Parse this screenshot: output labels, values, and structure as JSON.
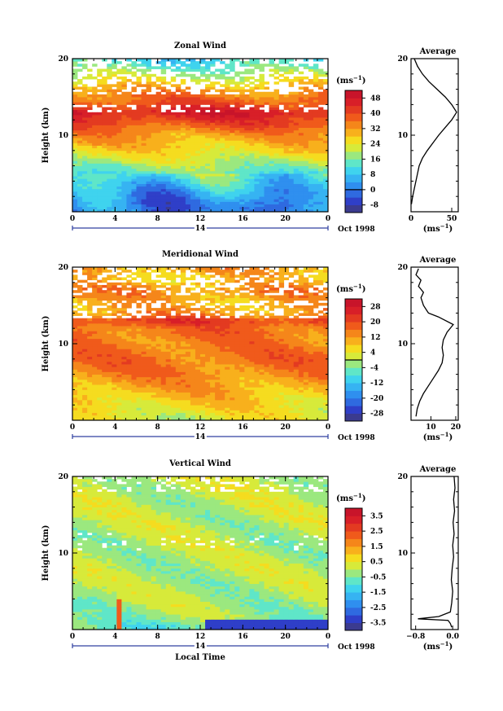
{
  "chart_data": [
    {
      "type": "heatmap",
      "title": "Zonal Wind",
      "ylabel": "Height (km)",
      "ylim": [
        0,
        20
      ],
      "y_ticks": [
        "20",
        "10"
      ],
      "x_ticks": [
        "0",
        "4",
        "8",
        "12",
        "16",
        "20",
        "0"
      ],
      "day_label": "14",
      "date_label": "Oct 1998",
      "colorbar": {
        "unit_prefix": "(ms",
        "unit_exp": "−1",
        "unit_suffix": ")",
        "ticks": [
          "48",
          "40",
          "32",
          "24",
          "16",
          "8",
          "0",
          "-8"
        ],
        "range": [
          -12,
          52
        ],
        "zero_line": 0,
        "colors": [
          "#3b3b8f",
          "#2f3fc8",
          "#2f6ae0",
          "#2f8fef",
          "#36b3f2",
          "#3fd3ee",
          "#5fe6c8",
          "#9be87f",
          "#d7ea3a",
          "#f5dc1f",
          "#f8b01c",
          "#f5861a",
          "#f05a1b",
          "#e33a21",
          "#d81f28",
          "#c8142a"
        ]
      },
      "profile": {
        "title": "Average",
        "x_ticks": [
          "0",
          "50"
        ],
        "x_range": [
          0,
          58
        ],
        "y_ticks": [
          "20",
          "10"
        ],
        "xlabel_prefix": "(ms",
        "xlabel_exp": "−1",
        "xlabel_suffix": ")",
        "points": [
          [
            0.5,
            1.0
          ],
          [
            2,
            2.0
          ],
          [
            4,
            3.0
          ],
          [
            6,
            4.0
          ],
          [
            8,
            5.0
          ],
          [
            10,
            6.0
          ],
          [
            14,
            7.0
          ],
          [
            20,
            8.0
          ],
          [
            27,
            9.0
          ],
          [
            34,
            10.0
          ],
          [
            42,
            11.0
          ],
          [
            50,
            12.0
          ],
          [
            56,
            13.0
          ],
          [
            50,
            14.0
          ],
          [
            42,
            15.0
          ],
          [
            32,
            16.0
          ],
          [
            22,
            17.0
          ],
          [
            14,
            18.0
          ],
          [
            8,
            19.0
          ],
          [
            4,
            20.0
          ]
        ]
      },
      "field": {
        "seed": 1,
        "baseline": [
          [
            1,
            0
          ],
          [
            2.5,
            4
          ],
          [
            4,
            10
          ],
          [
            6,
            18
          ],
          [
            8,
            26
          ],
          [
            10,
            32
          ],
          [
            12,
            42
          ],
          [
            13,
            47
          ],
          [
            14,
            40
          ],
          [
            16,
            32
          ],
          [
            17.5,
            22
          ],
          [
            19,
            14
          ],
          [
            20,
            10
          ]
        ],
        "gap_bands": [
          [
            13.0,
            14.0,
            0.35
          ],
          [
            15.5,
            20.0,
            0.45
          ]
        ]
      }
    },
    {
      "type": "heatmap",
      "title": "Meridional Wind",
      "ylabel": "Height (km)",
      "ylim": [
        0,
        20
      ],
      "y_ticks": [
        "20",
        "10"
      ],
      "x_ticks": [
        "0",
        "4",
        "8",
        "12",
        "16",
        "20",
        "0"
      ],
      "day_label": "14",
      "date_label": "Oct 1998",
      "colorbar": {
        "unit_prefix": "(ms",
        "unit_exp": "−1",
        "unit_suffix": ")",
        "ticks": [
          "28",
          "20",
          "12",
          "4",
          "-4",
          "-12",
          "-20",
          "-28"
        ],
        "range": [
          -32,
          32
        ],
        "zero_line": 0,
        "colors": [
          "#3b3b8f",
          "#2f3fc8",
          "#2f6ae0",
          "#2f8fef",
          "#36b3f2",
          "#3fd3ee",
          "#5fe6c8",
          "#9be87f",
          "#d7ea3a",
          "#f5dc1f",
          "#f8b01c",
          "#f5861a",
          "#f05a1b",
          "#e33a21",
          "#d81f28",
          "#c8142a"
        ]
      },
      "profile": {
        "title": "Average",
        "x_ticks": [
          "10",
          "20"
        ],
        "x_range": [
          2,
          21
        ],
        "y_ticks": [
          "20",
          "10"
        ],
        "xlabel_prefix": "(ms",
        "xlabel_exp": "−1",
        "xlabel_suffix": ")",
        "points": [
          [
            4,
            0.5
          ],
          [
            4.5,
            1.5
          ],
          [
            5.5,
            2.5
          ],
          [
            7,
            3.5
          ],
          [
            9,
            4.5
          ],
          [
            11,
            5.5
          ],
          [
            13,
            6.5
          ],
          [
            14.5,
            7.5
          ],
          [
            15,
            8.5
          ],
          [
            14.5,
            9.5
          ],
          [
            15,
            10.5
          ],
          [
            16.5,
            11.5
          ],
          [
            19,
            12.5
          ],
          [
            13,
            13.5
          ],
          [
            9,
            14.0
          ],
          [
            7,
            15.0
          ],
          [
            6,
            16.0
          ],
          [
            7,
            16.7
          ],
          [
            5,
            17.5
          ],
          [
            6,
            18.3
          ],
          [
            4,
            19.0
          ],
          [
            5,
            19.8
          ]
        ]
      },
      "field": {
        "seed": 2,
        "baseline": [
          [
            0.5,
            3
          ],
          [
            2,
            6
          ],
          [
            4,
            10
          ],
          [
            6,
            14
          ],
          [
            8,
            16
          ],
          [
            10,
            15
          ],
          [
            12,
            16
          ],
          [
            13,
            22
          ],
          [
            14,
            12
          ],
          [
            15.5,
            10
          ],
          [
            17,
            14
          ],
          [
            18.5,
            8
          ],
          [
            20,
            12
          ]
        ],
        "gap_bands": [
          [
            13.5,
            15.5,
            0.4
          ],
          [
            16.5,
            20.0,
            0.35
          ]
        ]
      }
    },
    {
      "type": "heatmap",
      "title": "Vertical Wind",
      "ylabel": "Height (km)",
      "ylim": [
        0,
        20
      ],
      "y_ticks": [
        "20",
        "10"
      ],
      "x_ticks": [
        "0",
        "4",
        "8",
        "12",
        "16",
        "20",
        "0"
      ],
      "day_label": "14",
      "date_label": "Oct 1998",
      "xlabel": "Local Time",
      "colorbar": {
        "unit_prefix": "(ms",
        "unit_exp": "−1",
        "unit_suffix": ")",
        "ticks": [
          "3.5",
          "2.5",
          "1.5",
          "0.5",
          "-0.5",
          "-1.5",
          "-2.5",
          "-3.5"
        ],
        "range": [
          -4,
          4
        ],
        "colors": [
          "#3b3b8f",
          "#2f3fc8",
          "#2f6ae0",
          "#2f8fef",
          "#36b3f2",
          "#3fd3ee",
          "#5fe6c8",
          "#9be87f",
          "#d7ea3a",
          "#f5dc1f",
          "#f8b01c",
          "#f5861a",
          "#f05a1b",
          "#e33a21",
          "#d81f28",
          "#c8142a"
        ]
      },
      "profile": {
        "title": "Average",
        "x_ticks": [
          "−0.8",
          "0.0"
        ],
        "x_range": [
          -0.9,
          0.12
        ],
        "y_ticks": [
          "20",
          "10"
        ],
        "xlabel_prefix": "(ms",
        "xlabel_exp": "−1",
        "xlabel_suffix": ")",
        "points": [
          [
            -0.02,
            0.3
          ],
          [
            -0.05,
            0.8
          ],
          [
            -0.1,
            1.2
          ],
          [
            -0.75,
            1.4
          ],
          [
            -0.3,
            1.7
          ],
          [
            -0.05,
            2.3
          ],
          [
            -0.02,
            3.5
          ],
          [
            0.0,
            5.0
          ],
          [
            -0.03,
            6.5
          ],
          [
            -0.01,
            8.0
          ],
          [
            0.02,
            9.5
          ],
          [
            0.0,
            11.0
          ],
          [
            0.03,
            12.5
          ],
          [
            0.01,
            14.0
          ],
          [
            0.04,
            15.5
          ],
          [
            0.02,
            17.0
          ],
          [
            0.05,
            18.5
          ],
          [
            0.03,
            20.0
          ]
        ]
      },
      "field": {
        "seed": 3,
        "baseline": [
          [
            0.5,
            -0.6
          ],
          [
            2,
            -0.2
          ],
          [
            4,
            -0.1
          ],
          [
            8,
            -0.05
          ],
          [
            12,
            0.0
          ],
          [
            16,
            0.05
          ],
          [
            20,
            0.1
          ]
        ],
        "gap_bands": [
          [
            18.0,
            20.0,
            0.25
          ],
          [
            10.5,
            12.5,
            0.1
          ]
        ]
      }
    }
  ]
}
